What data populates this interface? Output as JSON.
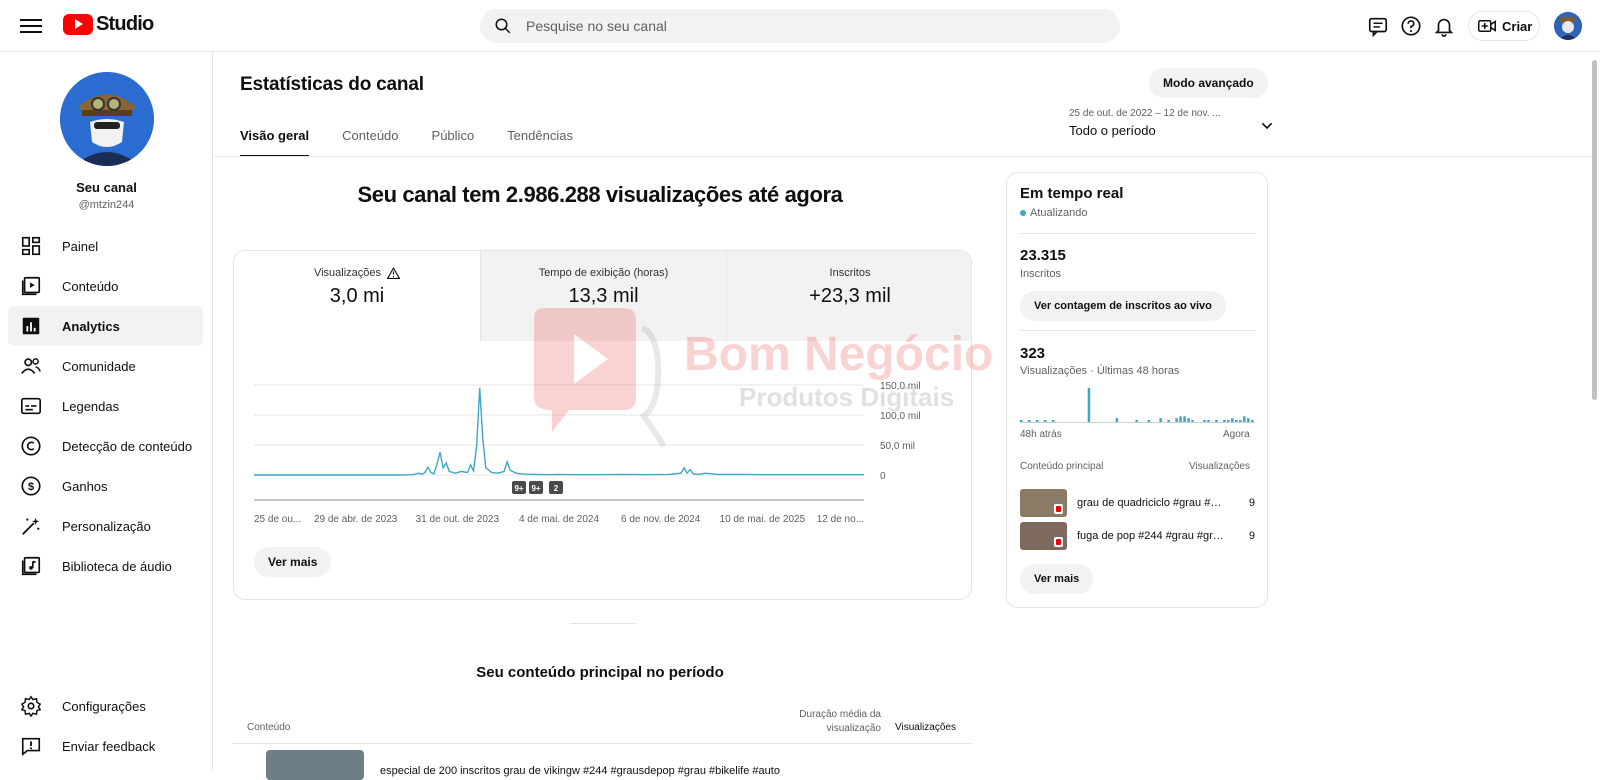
{
  "app": {
    "logo_text": "Studio"
  },
  "search": {
    "placeholder": "Pesquise no seu canal"
  },
  "header": {
    "create_label": "Criar"
  },
  "channel": {
    "name": "Seu canal",
    "handle": "@mtzin244"
  },
  "sidebar": {
    "items": [
      {
        "label": "Painel",
        "icon": "dashboard-icon"
      },
      {
        "label": "Conteúdo",
        "icon": "content-icon"
      },
      {
        "label": "Analytics",
        "icon": "analytics-icon",
        "active": true
      },
      {
        "label": "Comunidade",
        "icon": "community-icon"
      },
      {
        "label": "Legendas",
        "icon": "subtitles-icon"
      },
      {
        "label": "Detecção de conteúdo",
        "icon": "copyright-icon"
      },
      {
        "label": "Ganhos",
        "icon": "earn-icon"
      },
      {
        "label": "Personalização",
        "icon": "customization-icon"
      },
      {
        "label": "Biblioteca de áudio",
        "icon": "audio-library-icon"
      }
    ],
    "bottom": [
      {
        "label": "Configurações",
        "icon": "settings-icon"
      },
      {
        "label": "Enviar feedback",
        "icon": "feedback-icon"
      }
    ]
  },
  "page": {
    "title": "Estatísticas do canal",
    "advanced_mode": "Modo avançado",
    "tabs": [
      "Visão geral",
      "Conteúdo",
      "Público",
      "Tendências"
    ],
    "date_range": "25 de out. de 2022 – 12 de nov. ...",
    "date_label": "Todo o período",
    "headline": "Seu canal tem 2.986.288 visualizações até agora"
  },
  "metrics": [
    {
      "label": "Visualizações",
      "value": "3,0 mi",
      "warning": true
    },
    {
      "label": "Tempo de exibição (horas)",
      "value": "13,3 mil"
    },
    {
      "label": "Inscritos",
      "value": "+23,3 mil"
    }
  ],
  "chart_data": {
    "type": "line",
    "x": [
      "25 de ou...",
      "29 de abr. de 2023",
      "31 de out. de 2023",
      "4 de mai. de 2024",
      "6 de nov. de 2024",
      "10 de mai. de 2025",
      "12 de no..."
    ],
    "y_ticks": [
      "0",
      "50,0 mil",
      "100,0 mil",
      "150,0 mil"
    ],
    "ylim": [
      0,
      150000
    ],
    "series": [
      {
        "color": "#3ea6c6",
        "values": [
          [
            0,
            0
          ],
          [
            4,
            0
          ],
          [
            8,
            0
          ],
          [
            12,
            0
          ],
          [
            16,
            0
          ],
          [
            20,
            0
          ],
          [
            24,
            0
          ],
          [
            26,
            500
          ],
          [
            27,
            3000
          ],
          [
            27.5,
            1000
          ],
          [
            28,
            4000
          ],
          [
            28.5,
            13000
          ],
          [
            29,
            4000
          ],
          [
            29.5,
            2000
          ],
          [
            30,
            18000
          ],
          [
            30.5,
            38000
          ],
          [
            31,
            12000
          ],
          [
            31.5,
            20000
          ],
          [
            32,
            6000
          ],
          [
            33,
            3000
          ],
          [
            34,
            6000
          ],
          [
            35,
            4000
          ],
          [
            35.5,
            17000
          ],
          [
            36,
            7000
          ],
          [
            36.5,
            50000
          ],
          [
            37,
            145000
          ],
          [
            37.5,
            60000
          ],
          [
            38,
            12000
          ],
          [
            38.5,
            8000
          ],
          [
            39,
            4000
          ],
          [
            40,
            3000
          ],
          [
            41,
            6000
          ],
          [
            41.5,
            22000
          ],
          [
            42,
            8000
          ],
          [
            43,
            3000
          ],
          [
            44,
            1500
          ],
          [
            46,
            1000
          ],
          [
            48,
            500
          ],
          [
            50,
            1000
          ],
          [
            52,
            500
          ],
          [
            56,
            500
          ],
          [
            60,
            1000
          ],
          [
            64,
            500
          ],
          [
            68,
            1000
          ],
          [
            70,
            3000
          ],
          [
            70.5,
            12000
          ],
          [
            71,
            3000
          ],
          [
            71.5,
            9000
          ],
          [
            72,
            2000
          ],
          [
            73,
            1000
          ],
          [
            74,
            3000
          ],
          [
            76,
            1000
          ],
          [
            80,
            1000
          ],
          [
            84,
            500
          ],
          [
            88,
            500
          ],
          [
            92,
            500
          ],
          [
            96,
            500
          ],
          [
            100,
            500
          ]
        ]
      }
    ],
    "markers": [
      "9+",
      "9+",
      "2"
    ],
    "grid": true
  },
  "stats_card": {
    "see_more": "Ver mais"
  },
  "realtime": {
    "title": "Em tempo real",
    "status": "Atualizando",
    "subscribers": "23.315",
    "subscribers_label": "Inscritos",
    "live_button": "Ver contagem de inscritos ao vivo",
    "views": "323",
    "views_label": "Visualizações · Últimas 48 horas",
    "bars": [
      1,
      0,
      1,
      0,
      1,
      0,
      1,
      0,
      1,
      0,
      0,
      0,
      0,
      0,
      0,
      0,
      0,
      18,
      0,
      0,
      0,
      0,
      0,
      0,
      2,
      0,
      0,
      0,
      0,
      1,
      0,
      0,
      1,
      0,
      0,
      2,
      0,
      1,
      0,
      2,
      3,
      3,
      2,
      1,
      0,
      0,
      1,
      1,
      0,
      1,
      0,
      1,
      1,
      2,
      1,
      1,
      3,
      2,
      1
    ],
    "axis_start": "48h atrás",
    "axis_end": "Agora",
    "top_content_label": "Conteúdo principal",
    "top_views_label": "Visualizações",
    "top_content": [
      {
        "title": "grau de quadriciclo #grau #gr...",
        "views": "9"
      },
      {
        "title": "fuga de pop #244 #grau #gra...",
        "views": "9"
      }
    ],
    "see_more": "Ver mais"
  },
  "top_content_section": {
    "title": "Seu conteúdo principal no período",
    "col_content": "Conteúdo",
    "col_duration": "Duração média da visualização",
    "col_views": "Visualizações",
    "first_row_title": "especial de 200 inscritos grau de vikingw #244 #grausdepop #grau #bikelife #auto"
  },
  "watermark": {
    "title": "Bom Negócio",
    "subtitle": "Produtos Digitais"
  }
}
